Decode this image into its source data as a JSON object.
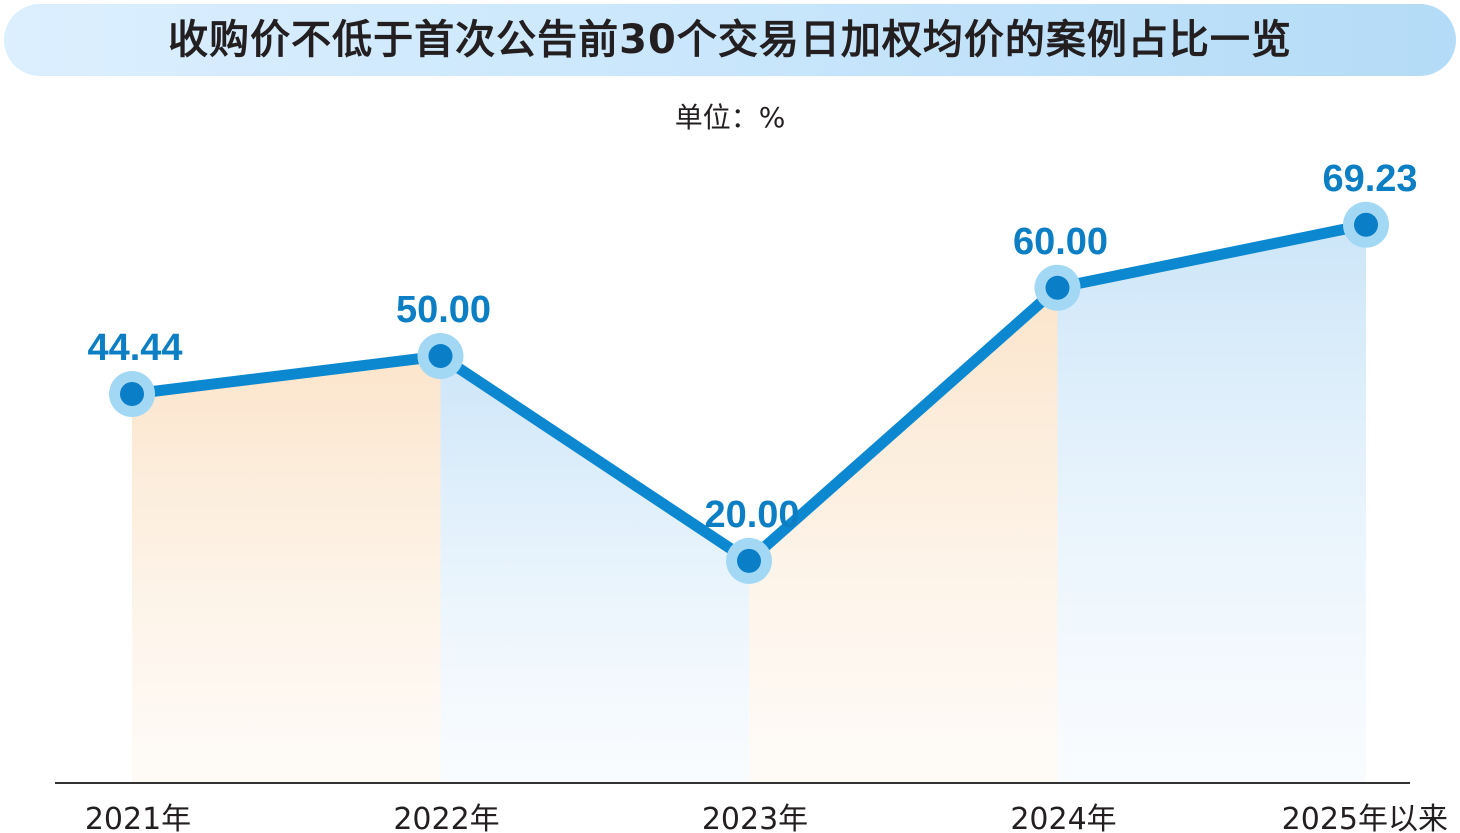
{
  "title": "收购价不低于首次公告前30个交易日加权均价的案例占比一览",
  "unit": "单位：%",
  "colors": {
    "line": "#0c88d0",
    "marker_halo": "#a3d8f5",
    "marker_core": "#0a7ec6",
    "label": "#0c7ec4",
    "fill_orange": "#fbe6cf",
    "fill_blue": "#cfe7fa",
    "axis": "#333333"
  },
  "chart_data": {
    "type": "line",
    "categories": [
      "2021年",
      "2022年",
      "2023年",
      "2024年",
      "2025年以来"
    ],
    "values": [
      44.44,
      50.0,
      20.0,
      60.0,
      69.23
    ],
    "value_labels": [
      "44.44",
      "50.00",
      "20.00",
      "60.00",
      "69.23"
    ],
    "title": "收购价不低于首次公告前30个交易日加权均价的案例占比一览",
    "ylabel": "单位：%",
    "grid": false,
    "legend": "none"
  }
}
